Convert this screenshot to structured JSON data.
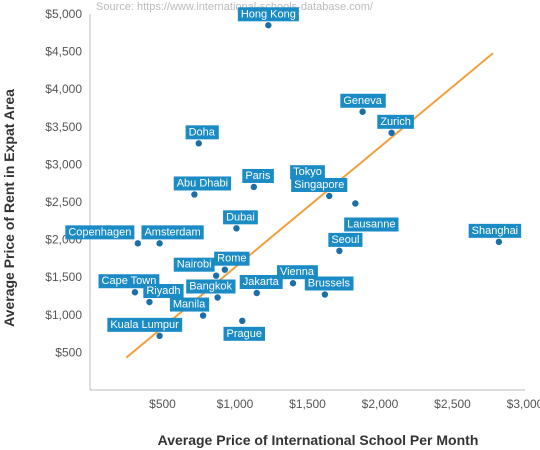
{
  "source": "Source: https://www.international-schools-database.com/",
  "colors": {
    "point": "#1b6fa8",
    "label_bg": "#1a8bc4",
    "label_text": "#ffffff",
    "trend": "#f2a03d",
    "axis": "#bbbbbb"
  },
  "chart_data": {
    "type": "scatter",
    "xlabel": "Average Price of International School Per Month",
    "ylabel": "Average Price of Rent in Expat Area",
    "xlim": [
      0,
      3000
    ],
    "ylim": [
      0,
      5000
    ],
    "xticks": [
      500,
      1000,
      1500,
      2000,
      2500,
      3000
    ],
    "xtick_labels": [
      "$500",
      "$1,000",
      "$1,500",
      "$2,000",
      "$2,500",
      "$3,000"
    ],
    "yticks": [
      500,
      1000,
      1500,
      2000,
      2500,
      3000,
      3500,
      4000,
      4500,
      5000
    ],
    "ytick_labels": [
      "$500",
      "$1,000",
      "$1,500",
      "$2,000",
      "$2,500",
      "$3,000",
      "$3,500",
      "$4,000",
      "$4,500",
      "$5,000"
    ],
    "grid": false,
    "points": [
      {
        "name": "Hong Kong",
        "x": 1230,
        "y": 4850
      },
      {
        "name": "Geneva",
        "x": 1880,
        "y": 3700
      },
      {
        "name": "Zurich",
        "x": 2080,
        "y": 3420
      },
      {
        "name": "Doha",
        "x": 750,
        "y": 3280
      },
      {
        "name": "Tokyo",
        "x": 1500,
        "y": 2750
      },
      {
        "name": "Paris",
        "x": 1130,
        "y": 2700
      },
      {
        "name": "Singapore",
        "x": 1650,
        "y": 2580
      },
      {
        "name": "Abu Dhabi",
        "x": 720,
        "y": 2600
      },
      {
        "name": "Lausanne",
        "x": 1830,
        "y": 2480
      },
      {
        "name": "Dubai",
        "x": 1010,
        "y": 2150
      },
      {
        "name": "Copenhagen",
        "x": 330,
        "y": 1950
      },
      {
        "name": "Amsterdam",
        "x": 480,
        "y": 1950
      },
      {
        "name": "Seoul",
        "x": 1720,
        "y": 1850
      },
      {
        "name": "Shanghai",
        "x": 2820,
        "y": 1970
      },
      {
        "name": "Rome",
        "x": 930,
        "y": 1600
      },
      {
        "name": "Nairobi",
        "x": 870,
        "y": 1520
      },
      {
        "name": "Vienna",
        "x": 1400,
        "y": 1420
      },
      {
        "name": "Cape Town",
        "x": 310,
        "y": 1300
      },
      {
        "name": "Jakarta",
        "x": 1150,
        "y": 1290
      },
      {
        "name": "Brussels",
        "x": 1620,
        "y": 1270
      },
      {
        "name": "Bangkok",
        "x": 880,
        "y": 1230
      },
      {
        "name": "Riyadh",
        "x": 410,
        "y": 1170
      },
      {
        "name": "Manila",
        "x": 780,
        "y": 990
      },
      {
        "name": "Prague",
        "x": 1050,
        "y": 920
      },
      {
        "name": "Kuala Lumpur",
        "x": 480,
        "y": 720
      }
    ],
    "trendline": {
      "x": [
        250,
        2780
      ],
      "y": [
        430,
        4480
      ]
    }
  }
}
